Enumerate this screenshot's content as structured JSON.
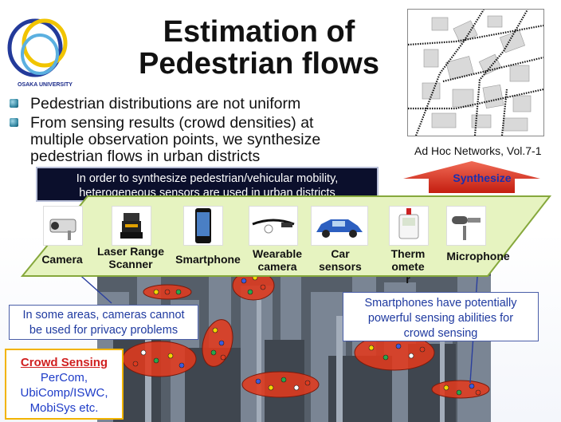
{
  "logo": {
    "text": "OSAKA UNIVERSITY"
  },
  "title": {
    "line1": "Estimation of",
    "line2": "Pedestrian flows"
  },
  "bullets": [
    "Pedestrian distributions are not uniform",
    "From sensing results (crowd densities) at multiple observation points, we synthesize pedestrian flows in urban districts"
  ],
  "citation": "Ad Hoc Networks, Vol.7-1",
  "sensor_banner": {
    "line1": "In order to synthesize pedestrian/vehicular mobility,",
    "line2": "heterogeneous sensors are used in urban districts"
  },
  "synthesize_label": "Synthesize",
  "sensors": [
    {
      "label": "Camera",
      "icon": "camera-icon"
    },
    {
      "label": "Laser Range Scanner",
      "icon": "laser-scanner-icon"
    },
    {
      "label": "Smartphone",
      "icon": "smartphone-icon"
    },
    {
      "label": "Wearable camera",
      "icon": "wearable-camera-icon"
    },
    {
      "label": "Car sensors",
      "icon": "car-icon"
    },
    {
      "label": "Thermometer",
      "icon": "thermometer-icon"
    },
    {
      "label": "Microphone",
      "icon": "microphone-icon"
    }
  ],
  "sensor_labels": {
    "camera": "Camera",
    "laser_line1": "Laser Range",
    "laser_line2": "Scanner",
    "smartphone": "Smartphone",
    "wearable_line1": "Wearable",
    "wearable_line2": "camera",
    "car_line1": "Car",
    "car_line2": "sensors",
    "thermo_line1": "Therm",
    "thermo_line2": "omete",
    "thermo_line3": "r",
    "microphone": "Microphone"
  },
  "callouts": {
    "privacy_line1": "In some areas, cameras cannot",
    "privacy_line2": "be used for privacy problems",
    "phones_line1": "Smartphones have potentially",
    "phones_line2": "powerful sensing abilities for",
    "phones_line3": "crowd sensing"
  },
  "crowd_sensing": {
    "title": "Crowd Sensing",
    "venue1": "PerCom,",
    "venue2": "UbiComp/ISWC,",
    "venue3": "MobiSys etc."
  },
  "colors": {
    "platform": "#e6f3c0",
    "banner": "#0b0f2c",
    "arrow": "#e03020",
    "crowd_area": "#e03a1e",
    "callout_border": "#4a5ea8"
  }
}
